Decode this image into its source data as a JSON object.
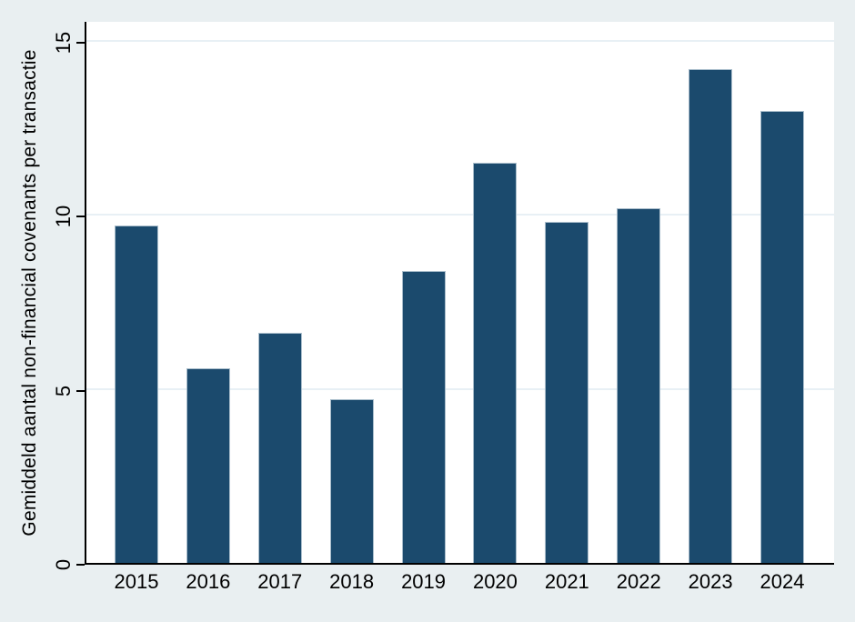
{
  "chart_data": {
    "type": "bar",
    "title": "",
    "categories": [
      "2015",
      "2016",
      "2017",
      "2018",
      "2019",
      "2020",
      "2021",
      "2022",
      "2023",
      "2024"
    ],
    "values": [
      9.7,
      5.6,
      6.6,
      4.7,
      8.4,
      11.5,
      9.8,
      10.2,
      14.2,
      13.0
    ],
    "xlabel": "",
    "ylabel": "Gemiddeld aantal non-financial covenants per transactie",
    "yticks": [
      0,
      5,
      10,
      15
    ],
    "ylim": [
      0,
      15.6
    ],
    "grid": "horizontal-only",
    "legend": "none",
    "colors": {
      "bar_fill": "#1b4a6d",
      "bar_outline": "#a9bdcb",
      "figure_background": "#e9eff1",
      "plot_background": "#ffffff",
      "gridline": "#e8f0f5",
      "axis": "#000000",
      "text": "#000000"
    }
  }
}
